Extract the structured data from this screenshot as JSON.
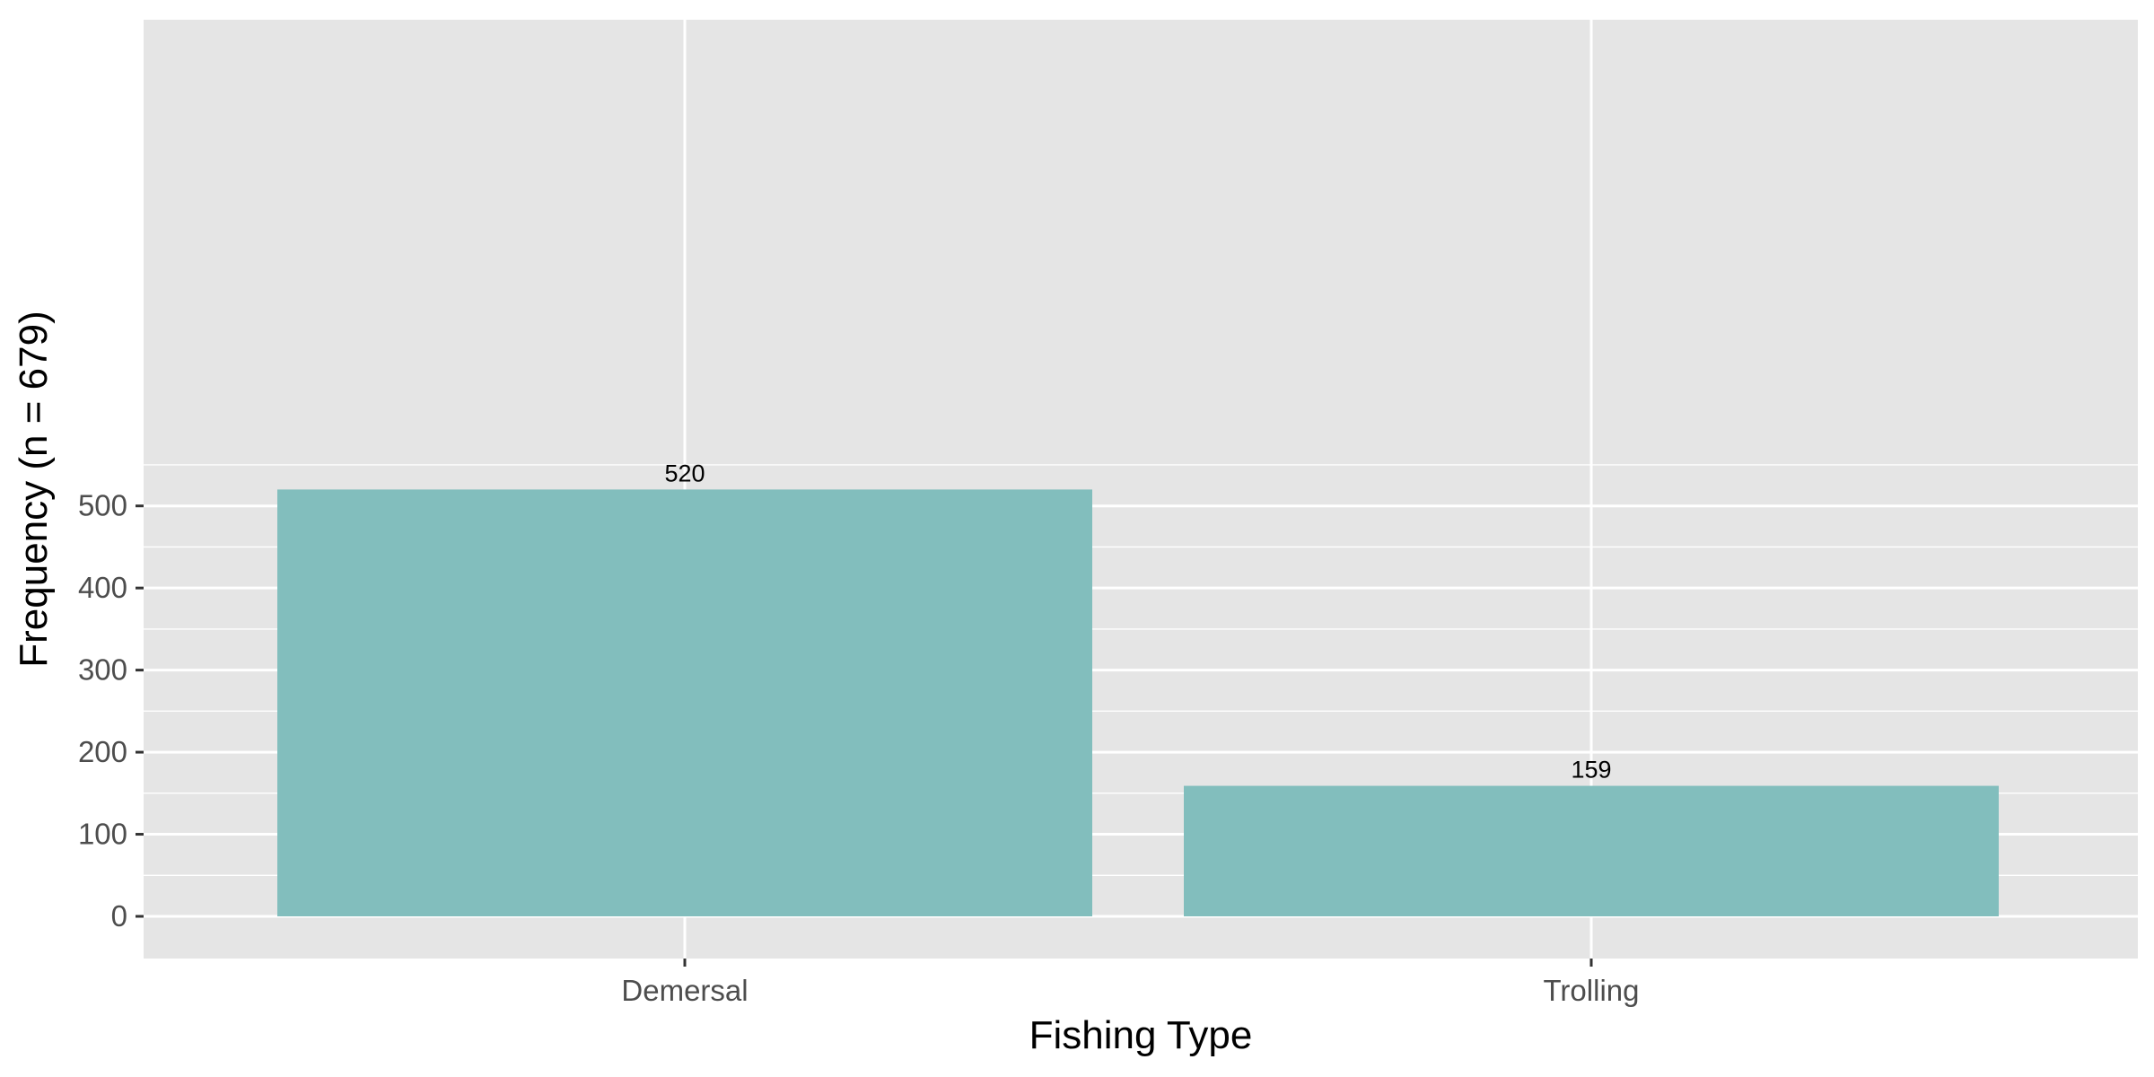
{
  "chart_data": {
    "type": "bar",
    "title": "",
    "xlabel": "Fishing Type",
    "ylabel": "Frequency (n = 679)",
    "categories": [
      "Demersal",
      "Trolling"
    ],
    "values": [
      520,
      159
    ],
    "data_labels": [
      "520",
      "159"
    ],
    "ylim": [
      0,
      547
    ],
    "y_ticks": [
      0,
      100,
      200,
      300,
      400,
      500
    ],
    "y_tick_labels": [
      "0",
      "100",
      "200",
      "300",
      "400",
      "500"
    ],
    "grid": true,
    "legend": "none",
    "colors": {
      "bar": "#82bebd",
      "panel": "#e5e5e5",
      "grid": "#ffffff",
      "tick_text": "#4d4d4d",
      "title_text": "#000000"
    }
  }
}
